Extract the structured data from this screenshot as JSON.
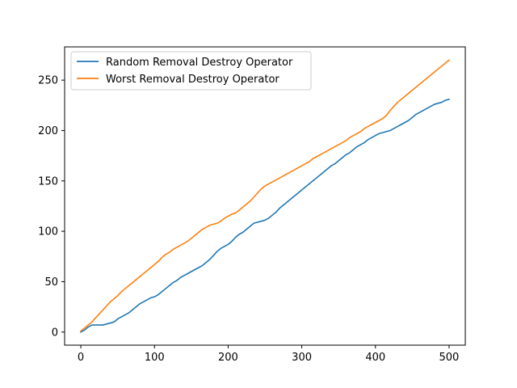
{
  "chart_data": {
    "type": "line",
    "title": "",
    "xlabel": "",
    "ylabel": "",
    "xlim": [
      -22,
      522
    ],
    "ylim": [
      -13,
      283
    ],
    "xticks": [
      0,
      100,
      200,
      300,
      400,
      500
    ],
    "yticks": [
      0,
      50,
      100,
      150,
      200,
      250
    ],
    "grid": false,
    "legend": "upper-left",
    "series": [
      {
        "name": "Random Removal Destroy Operator",
        "color": "#1f77b4",
        "points": [
          [
            0,
            0
          ],
          [
            5,
            2
          ],
          [
            10,
            5
          ],
          [
            15,
            7
          ],
          [
            20,
            7
          ],
          [
            25,
            7
          ],
          [
            30,
            7
          ],
          [
            35,
            8
          ],
          [
            40,
            9
          ],
          [
            45,
            10
          ],
          [
            50,
            13
          ],
          [
            55,
            15
          ],
          [
            60,
            17
          ],
          [
            65,
            19
          ],
          [
            70,
            22
          ],
          [
            75,
            25
          ],
          [
            80,
            28
          ],
          [
            85,
            30
          ],
          [
            90,
            32
          ],
          [
            95,
            34
          ],
          [
            100,
            35
          ],
          [
            105,
            37
          ],
          [
            110,
            40
          ],
          [
            115,
            43
          ],
          [
            120,
            46
          ],
          [
            125,
            49
          ],
          [
            130,
            51
          ],
          [
            135,
            54
          ],
          [
            140,
            56
          ],
          [
            145,
            58
          ],
          [
            150,
            60
          ],
          [
            155,
            62
          ],
          [
            160,
            64
          ],
          [
            165,
            66
          ],
          [
            170,
            69
          ],
          [
            175,
            72
          ],
          [
            180,
            76
          ],
          [
            185,
            80
          ],
          [
            190,
            83
          ],
          [
            195,
            85
          ],
          [
            200,
            87
          ],
          [
            205,
            90
          ],
          [
            210,
            94
          ],
          [
            215,
            97
          ],
          [
            220,
            99
          ],
          [
            225,
            102
          ],
          [
            230,
            105
          ],
          [
            235,
            108
          ],
          [
            240,
            109
          ],
          [
            245,
            110
          ],
          [
            250,
            111
          ],
          [
            255,
            113
          ],
          [
            260,
            116
          ],
          [
            265,
            119
          ],
          [
            270,
            123
          ],
          [
            275,
            126
          ],
          [
            280,
            129
          ],
          [
            285,
            132
          ],
          [
            290,
            135
          ],
          [
            295,
            138
          ],
          [
            300,
            141
          ],
          [
            305,
            144
          ],
          [
            310,
            147
          ],
          [
            315,
            150
          ],
          [
            320,
            153
          ],
          [
            325,
            156
          ],
          [
            330,
            159
          ],
          [
            335,
            162
          ],
          [
            340,
            165
          ],
          [
            345,
            167
          ],
          [
            350,
            170
          ],
          [
            355,
            173
          ],
          [
            360,
            176
          ],
          [
            365,
            178
          ],
          [
            370,
            181
          ],
          [
            375,
            184
          ],
          [
            380,
            186
          ],
          [
            385,
            188
          ],
          [
            390,
            191
          ],
          [
            395,
            193
          ],
          [
            400,
            195
          ],
          [
            405,
            197
          ],
          [
            410,
            198
          ],
          [
            415,
            199
          ],
          [
            420,
            200
          ],
          [
            425,
            202
          ],
          [
            430,
            204
          ],
          [
            435,
            206
          ],
          [
            440,
            208
          ],
          [
            445,
            210
          ],
          [
            450,
            213
          ],
          [
            455,
            216
          ],
          [
            460,
            218
          ],
          [
            465,
            220
          ],
          [
            470,
            222
          ],
          [
            475,
            224
          ],
          [
            480,
            226
          ],
          [
            485,
            227
          ],
          [
            490,
            228
          ],
          [
            495,
            230
          ],
          [
            500,
            231
          ]
        ]
      },
      {
        "name": "Worst Removal Destroy Operator",
        "color": "#ff7f0e",
        "points": [
          [
            0,
            1
          ],
          [
            5,
            4
          ],
          [
            10,
            7
          ],
          [
            15,
            10
          ],
          [
            20,
            14
          ],
          [
            25,
            18
          ],
          [
            30,
            22
          ],
          [
            35,
            26
          ],
          [
            40,
            30
          ],
          [
            45,
            33
          ],
          [
            50,
            36
          ],
          [
            55,
            40
          ],
          [
            60,
            43
          ],
          [
            65,
            46
          ],
          [
            70,
            49
          ],
          [
            75,
            52
          ],
          [
            80,
            55
          ],
          [
            85,
            58
          ],
          [
            90,
            61
          ],
          [
            95,
            64
          ],
          [
            100,
            67
          ],
          [
            105,
            70
          ],
          [
            110,
            74
          ],
          [
            115,
            77
          ],
          [
            120,
            79
          ],
          [
            125,
            82
          ],
          [
            130,
            84
          ],
          [
            135,
            86
          ],
          [
            140,
            88
          ],
          [
            145,
            90
          ],
          [
            150,
            93
          ],
          [
            155,
            96
          ],
          [
            160,
            99
          ],
          [
            165,
            102
          ],
          [
            170,
            104
          ],
          [
            175,
            106
          ],
          [
            180,
            107
          ],
          [
            185,
            108
          ],
          [
            190,
            110
          ],
          [
            195,
            113
          ],
          [
            200,
            115
          ],
          [
            205,
            117
          ],
          [
            210,
            118
          ],
          [
            215,
            121
          ],
          [
            220,
            124
          ],
          [
            225,
            127
          ],
          [
            230,
            130
          ],
          [
            235,
            134
          ],
          [
            240,
            138
          ],
          [
            245,
            142
          ],
          [
            250,
            145
          ],
          [
            255,
            147
          ],
          [
            260,
            149
          ],
          [
            265,
            151
          ],
          [
            270,
            153
          ],
          [
            275,
            155
          ],
          [
            280,
            157
          ],
          [
            285,
            159
          ],
          [
            290,
            161
          ],
          [
            295,
            163
          ],
          [
            300,
            165
          ],
          [
            305,
            167
          ],
          [
            310,
            169
          ],
          [
            315,
            172
          ],
          [
            320,
            174
          ],
          [
            325,
            176
          ],
          [
            330,
            178
          ],
          [
            335,
            180
          ],
          [
            340,
            182
          ],
          [
            345,
            184
          ],
          [
            350,
            186
          ],
          [
            355,
            188
          ],
          [
            360,
            190
          ],
          [
            365,
            193
          ],
          [
            370,
            195
          ],
          [
            375,
            197
          ],
          [
            380,
            199
          ],
          [
            385,
            202
          ],
          [
            390,
            204
          ],
          [
            395,
            206
          ],
          [
            400,
            208
          ],
          [
            405,
            210
          ],
          [
            410,
            212
          ],
          [
            415,
            215
          ],
          [
            420,
            220
          ],
          [
            425,
            224
          ],
          [
            430,
            228
          ],
          [
            435,
            231
          ],
          [
            440,
            234
          ],
          [
            445,
            237
          ],
          [
            450,
            240
          ],
          [
            455,
            243
          ],
          [
            460,
            246
          ],
          [
            465,
            249
          ],
          [
            470,
            252
          ],
          [
            475,
            255
          ],
          [
            480,
            258
          ],
          [
            485,
            261
          ],
          [
            490,
            264
          ],
          [
            495,
            267
          ],
          [
            500,
            270
          ]
        ]
      }
    ]
  }
}
